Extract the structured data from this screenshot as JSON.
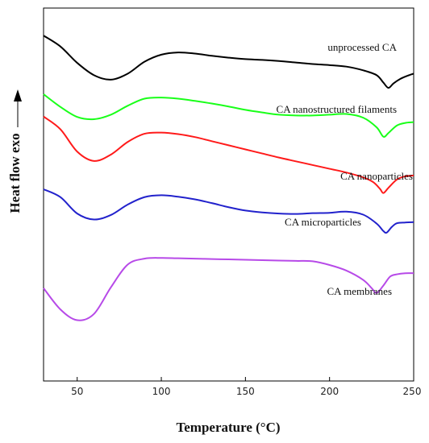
{
  "chart_data": {
    "type": "line",
    "xlabel": "Temperature (°C)",
    "ylabel": "Heat flow exo",
    "xlim": [
      30,
      250
    ],
    "xticks": [
      50,
      100,
      150,
      200,
      250
    ],
    "grid": false,
    "series": [
      {
        "name": "unprocessed CA",
        "color": "#000000",
        "points": [
          [
            30,
            92.6
          ],
          [
            40,
            89.7
          ],
          [
            50,
            85.3
          ],
          [
            60,
            82.0
          ],
          [
            70,
            80.8
          ],
          [
            80,
            82.4
          ],
          [
            90,
            85.6
          ],
          [
            100,
            87.5
          ],
          [
            110,
            88.1
          ],
          [
            120,
            87.8
          ],
          [
            130,
            87.2
          ],
          [
            140,
            86.7
          ],
          [
            150,
            86.3
          ],
          [
            160,
            86.1
          ],
          [
            170,
            85.8
          ],
          [
            180,
            85.4
          ],
          [
            190,
            85.0
          ],
          [
            200,
            84.7
          ],
          [
            210,
            84.3
          ],
          [
            220,
            83.3
          ],
          [
            228,
            82.0
          ],
          [
            232,
            80.0
          ],
          [
            235,
            78.6
          ],
          [
            238,
            79.8
          ],
          [
            242,
            81.0
          ],
          [
            246,
            81.8
          ],
          [
            250,
            82.4
          ]
        ]
      },
      {
        "name": "CA nanostructured filaments",
        "color": "#19ff19",
        "points": [
          [
            30,
            76.9
          ],
          [
            40,
            73.5
          ],
          [
            50,
            70.8
          ],
          [
            60,
            70.2
          ],
          [
            70,
            71.4
          ],
          [
            80,
            73.8
          ],
          [
            90,
            75.7
          ],
          [
            100,
            76.0
          ],
          [
            110,
            75.7
          ],
          [
            120,
            75.1
          ],
          [
            130,
            74.4
          ],
          [
            140,
            73.6
          ],
          [
            150,
            72.7
          ],
          [
            160,
            72.0
          ],
          [
            170,
            71.4
          ],
          [
            180,
            71.2
          ],
          [
            190,
            71.2
          ],
          [
            200,
            71.4
          ],
          [
            210,
            71.6
          ],
          [
            220,
            70.6
          ],
          [
            228,
            68.0
          ],
          [
            232,
            65.5
          ],
          [
            235,
            66.5
          ],
          [
            240,
            68.5
          ],
          [
            245,
            69.2
          ],
          [
            250,
            69.4
          ]
        ]
      },
      {
        "name": "CA nanoparticles",
        "color": "#ff1a1a",
        "points": [
          [
            30,
            70.9
          ],
          [
            40,
            67.5
          ],
          [
            50,
            61.5
          ],
          [
            60,
            59.0
          ],
          [
            70,
            60.7
          ],
          [
            80,
            64.1
          ],
          [
            90,
            66.3
          ],
          [
            100,
            66.6
          ],
          [
            110,
            66.2
          ],
          [
            120,
            65.4
          ],
          [
            130,
            64.3
          ],
          [
            140,
            63.2
          ],
          [
            150,
            62.1
          ],
          [
            160,
            61.0
          ],
          [
            170,
            59.9
          ],
          [
            180,
            58.9
          ],
          [
            190,
            57.9
          ],
          [
            200,
            56.9
          ],
          [
            210,
            55.9
          ],
          [
            220,
            54.6
          ],
          [
            226,
            53.3
          ],
          [
            230,
            51.5
          ],
          [
            232,
            50.4
          ],
          [
            235,
            51.8
          ],
          [
            240,
            54.0
          ],
          [
            245,
            54.9
          ],
          [
            250,
            55.1
          ]
        ]
      },
      {
        "name": "CA microparticles",
        "color": "#2222cc",
        "points": [
          [
            30,
            51.4
          ],
          [
            40,
            49.3
          ],
          [
            50,
            44.9
          ],
          [
            60,
            43.3
          ],
          [
            70,
            44.5
          ],
          [
            80,
            47.3
          ],
          [
            90,
            49.3
          ],
          [
            100,
            49.8
          ],
          [
            110,
            49.4
          ],
          [
            120,
            48.7
          ],
          [
            130,
            47.7
          ],
          [
            140,
            46.6
          ],
          [
            150,
            45.7
          ],
          [
            160,
            45.2
          ],
          [
            170,
            44.9
          ],
          [
            180,
            44.8
          ],
          [
            190,
            45.0
          ],
          [
            200,
            45.1
          ],
          [
            210,
            45.4
          ],
          [
            220,
            44.6
          ],
          [
            228,
            42.2
          ],
          [
            232,
            40.2
          ],
          [
            234,
            39.8
          ],
          [
            237,
            41.3
          ],
          [
            240,
            42.3
          ],
          [
            245,
            42.5
          ],
          [
            250,
            42.6
          ]
        ]
      },
      {
        "name": "CA membranes",
        "color": "#b74ae8",
        "points": [
          [
            30,
            24.9
          ],
          [
            40,
            19.2
          ],
          [
            50,
            16.3
          ],
          [
            60,
            18.0
          ],
          [
            70,
            25.1
          ],
          [
            80,
            31.2
          ],
          [
            90,
            32.8
          ],
          [
            100,
            33.0
          ],
          [
            110,
            32.9
          ],
          [
            120,
            32.8
          ],
          [
            130,
            32.7
          ],
          [
            140,
            32.6
          ],
          [
            150,
            32.5
          ],
          [
            160,
            32.4
          ],
          [
            170,
            32.3
          ],
          [
            180,
            32.2
          ],
          [
            190,
            32.1
          ],
          [
            200,
            31.1
          ],
          [
            210,
            29.6
          ],
          [
            220,
            27.1
          ],
          [
            225,
            24.9
          ],
          [
            228,
            23.6
          ],
          [
            232,
            25.6
          ],
          [
            236,
            28.0
          ],
          [
            240,
            28.6
          ],
          [
            245,
            28.9
          ],
          [
            250,
            28.9
          ]
        ]
      }
    ]
  }
}
